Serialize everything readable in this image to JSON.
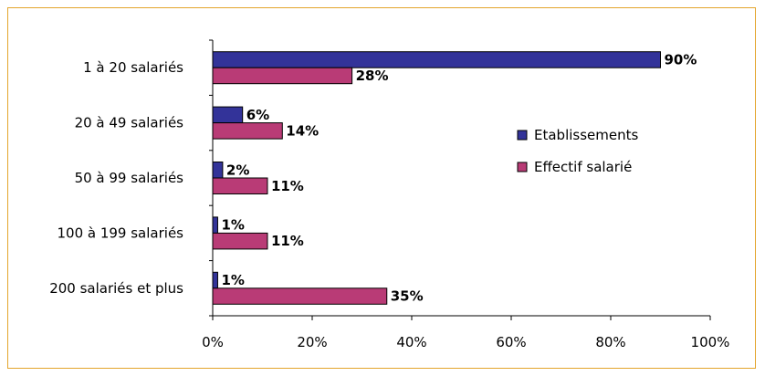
{
  "chart_data": {
    "type": "bar",
    "orientation": "horizontal",
    "categories": [
      "1 à 20 salariés",
      "20 à 49 salariés",
      "50 à 99 salariés",
      "100 à 199 salariés",
      "200 salariés et plus"
    ],
    "series": [
      {
        "name": "Etablissements",
        "values": [
          90,
          6,
          2,
          1,
          1
        ],
        "labels": [
          "90%",
          "6%",
          "2%",
          "1%",
          "1%"
        ],
        "color": "#333399"
      },
      {
        "name": "Effectif salarié",
        "values": [
          28,
          14,
          11,
          11,
          35
        ],
        "labels": [
          "28%",
          "14%",
          "11%",
          "11%",
          "35%"
        ],
        "color": "#b93b76"
      }
    ],
    "xlim": [
      0,
      100
    ],
    "xticks": [
      "0%",
      "20%",
      "40%",
      "60%",
      "80%",
      "100%"
    ],
    "grid": false,
    "legend_position": "right"
  },
  "colors": {
    "frame": "#e3a52c",
    "axis": "#000000"
  }
}
